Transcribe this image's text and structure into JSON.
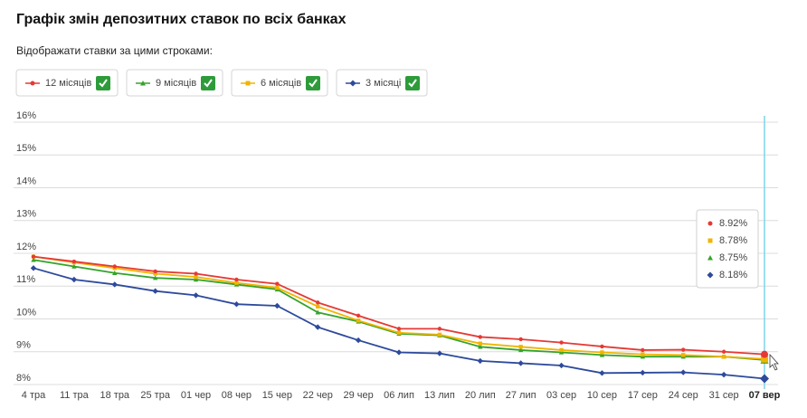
{
  "chart_data": {
    "type": "line",
    "title": "Графік змін депозитних ставок по всіх банках",
    "subtitle": "Відображати ставки за цими строками:",
    "categories": [
      "4 тра",
      "11 тра",
      "18 тра",
      "25 тра",
      "01 чер",
      "08 чер",
      "15 чер",
      "22 чер",
      "29 чер",
      "06 лип",
      "13 лип",
      "20 лип",
      "27 лип",
      "03 сер",
      "10 сер",
      "17 сер",
      "24 сер",
      "31 сер",
      "07 вер"
    ],
    "series": [
      {
        "name": "12 місяців",
        "color": "#e53935",
        "marker": "circle",
        "values": [
          11.9,
          11.75,
          11.6,
          11.45,
          11.38,
          11.2,
          11.07,
          10.5,
          10.1,
          9.7,
          9.7,
          9.45,
          9.38,
          9.28,
          9.16,
          9.05,
          9.06,
          9.0,
          8.92
        ]
      },
      {
        "name": "9 місяців",
        "color": "#35a32a",
        "marker": "triangle",
        "values": [
          11.8,
          11.6,
          11.4,
          11.25,
          11.2,
          11.05,
          10.9,
          10.2,
          9.92,
          9.55,
          9.5,
          9.15,
          9.05,
          8.98,
          8.9,
          8.85,
          8.85,
          8.85,
          8.75
        ]
      },
      {
        "name": "6 місяців",
        "color": "#f0b400",
        "marker": "square",
        "values": [
          11.9,
          11.72,
          11.55,
          11.38,
          11.28,
          11.1,
          10.95,
          10.38,
          9.95,
          9.58,
          9.52,
          9.25,
          9.15,
          9.05,
          8.98,
          8.92,
          8.9,
          8.85,
          8.78
        ]
      },
      {
        "name": "3 місяці",
        "color": "#2d4a9c",
        "marker": "diamond",
        "values": [
          11.55,
          11.2,
          11.05,
          10.85,
          10.72,
          10.45,
          10.4,
          9.75,
          9.35,
          8.98,
          8.95,
          8.72,
          8.65,
          8.58,
          8.35,
          8.36,
          8.37,
          8.3,
          8.18
        ]
      }
    ],
    "ylim": [
      8,
      16
    ],
    "yticks": [
      {
        "value": 8,
        "label": "8%"
      },
      {
        "value": 9,
        "label": "9%"
      },
      {
        "value": 10,
        "label": "10%"
      },
      {
        "value": 11,
        "label": "11%"
      },
      {
        "value": 12,
        "label": "12%"
      },
      {
        "value": 13,
        "label": "13%"
      },
      {
        "value": 14,
        "label": "14%"
      },
      {
        "value": 15,
        "label": "15%"
      },
      {
        "value": 16,
        "label": "16%"
      }
    ],
    "grid": true,
    "tooltip": {
      "series_order": [
        0,
        2,
        1,
        3
      ],
      "labels": [
        "8.92%",
        "8.78%",
        "8.75%",
        "8.18%"
      ]
    }
  }
}
